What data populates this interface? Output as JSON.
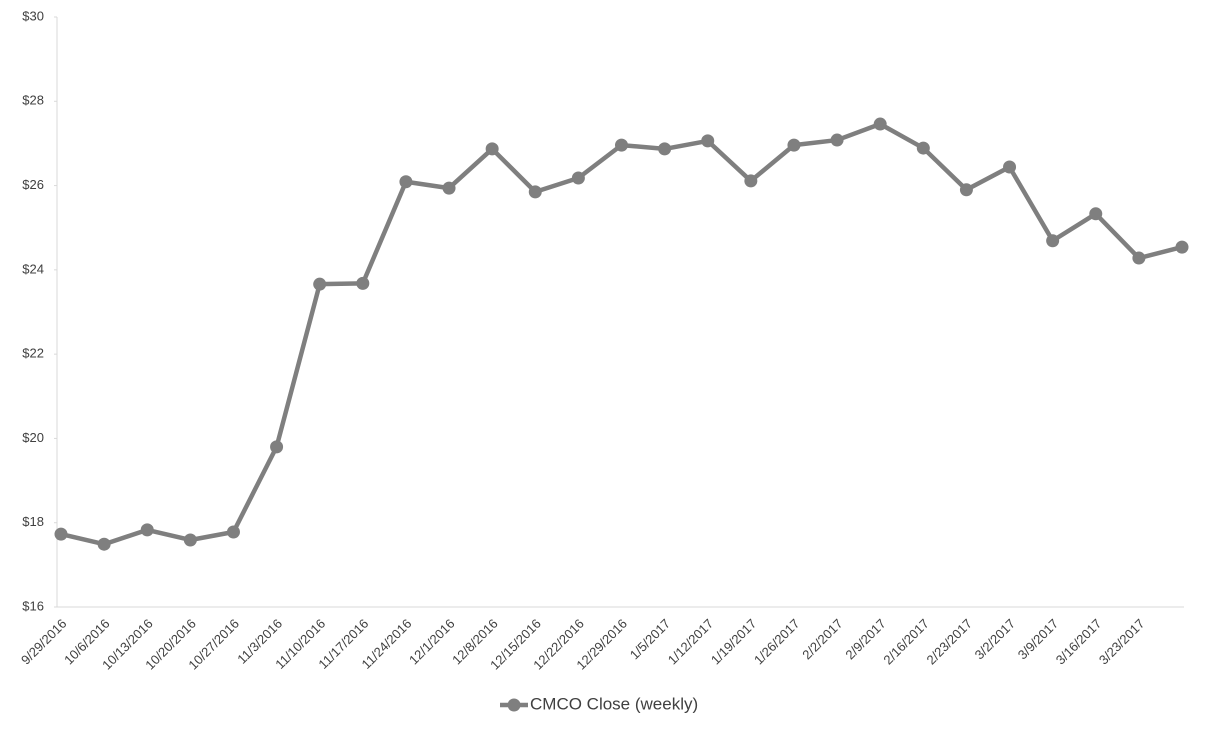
{
  "chart_data": {
    "type": "line",
    "categories": [
      "9/29/2016",
      "10/6/2016",
      "10/13/2016",
      "10/20/2016",
      "10/27/2016",
      "11/3/2016",
      "11/10/2016",
      "11/17/2016",
      "11/24/2016",
      "12/1/2016",
      "12/8/2016",
      "12/15/2016",
      "12/22/2016",
      "12/29/2016",
      "1/5/2017",
      "1/12/2017",
      "1/19/2017",
      "1/26/2017",
      "2/2/2017",
      "2/9/2017",
      "2/16/2017",
      "2/23/2017",
      "3/2/2017",
      "3/9/2017",
      "3/16/2017",
      "3/23/2017",
      null
    ],
    "series": [
      {
        "name": "CMCO Close (weekly)",
        "color": "#7f7f7f",
        "values": [
          17.73,
          17.49,
          17.83,
          17.59,
          17.78,
          19.8,
          23.66,
          23.68,
          26.09,
          25.94,
          26.87,
          25.85,
          26.18,
          26.96,
          26.87,
          27.06,
          26.11,
          26.96,
          27.08,
          27.46,
          26.89,
          25.9,
          26.44,
          24.69,
          25.33,
          24.28,
          24.54
        ]
      }
    ],
    "ylim": [
      16,
      30
    ],
    "yticks": [
      {
        "value": 16,
        "label": "$16"
      },
      {
        "value": 18,
        "label": "$18"
      },
      {
        "value": 20,
        "label": "$20"
      },
      {
        "value": 22,
        "label": "$22"
      },
      {
        "value": 24,
        "label": "$24"
      },
      {
        "value": 26,
        "label": "$26"
      },
      {
        "value": 28,
        "label": "$28"
      },
      {
        "value": 30,
        "label": "$30"
      }
    ],
    "legend": "bottom"
  }
}
